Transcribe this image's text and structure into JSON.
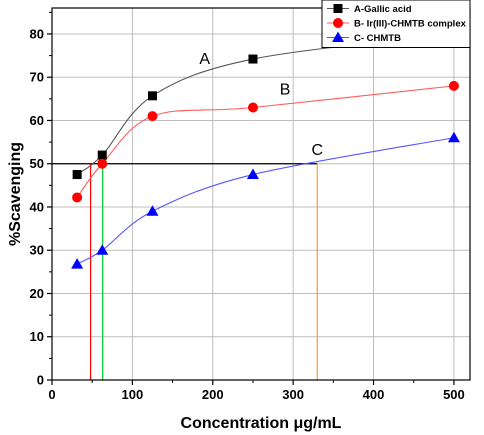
{
  "chart_data": {
    "type": "scatter",
    "xlabel": "Concentration μg/mL",
    "ylabel": "%Scavenging",
    "xlim": [
      0,
      520
    ],
    "ylim": [
      0,
      86
    ],
    "xticks": [
      0,
      100,
      200,
      300,
      400,
      500
    ],
    "yticks": [
      0,
      10,
      20,
      30,
      40,
      50,
      60,
      70,
      80
    ],
    "grid": true,
    "legend_position": "top-right",
    "series": [
      {
        "name": "A-Gallic acid",
        "marker": "square",
        "color": "#000000",
        "line_color": "#555555",
        "x": [
          31.25,
          62.5,
          125,
          250,
          500
        ],
        "y": [
          47.5,
          52.0,
          65.7,
          74.2,
          80.0
        ],
        "annotation": "A",
        "annotation_at": [
          190,
          73
        ]
      },
      {
        "name": "B- Ir(III)-CHMTB complex",
        "marker": "circle",
        "color": "#ff0000",
        "line_color": "#ff5a5a",
        "x": [
          31.25,
          62.5,
          125,
          250,
          500
        ],
        "y": [
          42.2,
          50.0,
          61.0,
          63.0,
          68.0
        ],
        "annotation": "B",
        "annotation_at": [
          290,
          66
        ]
      },
      {
        "name": "C- CHMTB",
        "marker": "triangle",
        "color": "#0000ff",
        "line_color": "#5555ff",
        "x": [
          31.25,
          62.5,
          125,
          250,
          500
        ],
        "y": [
          26.8,
          30.0,
          39.0,
          47.5,
          56.0
        ],
        "annotation": "C",
        "annotation_at": [
          330,
          52
        ]
      }
    ],
    "reference_lines": {
      "horizontal_y": 50,
      "horizontal_x_range": [
        0,
        330
      ],
      "vertical": [
        {
          "x": 48,
          "color": "#ff0000"
        },
        {
          "x": 63,
          "color": "#00cc33"
        },
        {
          "x": 330,
          "color": "#ff9933"
        }
      ]
    }
  }
}
